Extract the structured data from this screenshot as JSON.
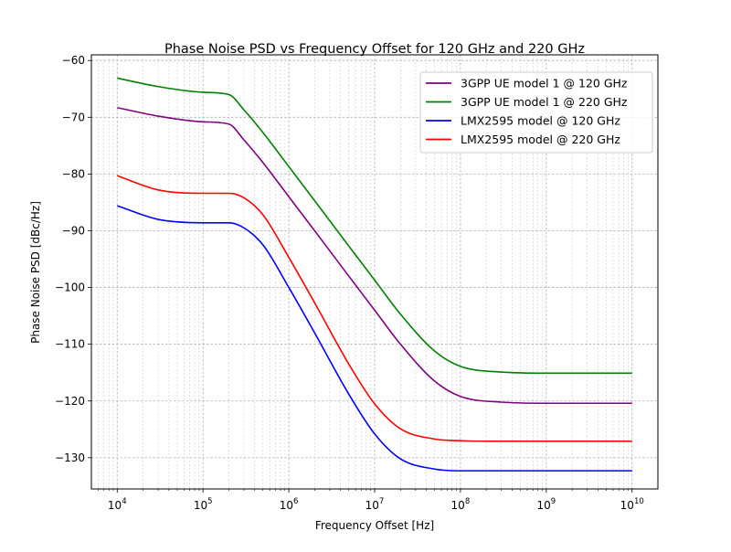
{
  "chart_data": {
    "type": "line",
    "title": "Phase Noise PSD vs Frequency Offset for 120 GHz and 220 GHz",
    "xlabel": "Frequency Offset [Hz]",
    "ylabel": "Phase Noise PSD [dBc/Hz]",
    "xscale": "log",
    "xlim": [
      5000,
      20000000000
    ],
    "ylim": [
      -135.5,
      -59
    ],
    "x_tick_exponents": [
      "4",
      "5",
      "6",
      "7",
      "8",
      "9",
      "10"
    ],
    "x_tick_base": "10",
    "y_ticks": [
      -60,
      -70,
      -80,
      -90,
      -100,
      -110,
      -120,
      -130
    ],
    "grid": true,
    "legend_position": "top-right",
    "x": [
      10000,
      30000,
      100000,
      200000,
      300000,
      500000,
      1000000,
      2000000,
      5000000,
      10000000,
      20000000,
      50000000,
      100000000,
      300000000,
      1000000000,
      10000000000
    ],
    "series": [
      {
        "name": "3GPP UE model 1 @ 120 GHz",
        "color": "#800080",
        "values": [
          -68.3,
          -69.8,
          -70.8,
          -71.2,
          -74.0,
          -78.0,
          -84.0,
          -90.0,
          -98.0,
          -104.0,
          -110.0,
          -116.5,
          -119.2,
          -120.2,
          -120.4,
          -120.4
        ]
      },
      {
        "name": "3GPP UE model 1 @ 220 GHz",
        "color": "#008000",
        "values": [
          -63.1,
          -64.6,
          -65.6,
          -66.0,
          -68.7,
          -72.7,
          -78.7,
          -84.7,
          -92.7,
          -98.7,
          -104.7,
          -111.2,
          -113.9,
          -114.9,
          -115.1,
          -115.1
        ]
      },
      {
        "name": "LMX2595 model @ 120 GHz",
        "color": "#0000ff",
        "values": [
          -85.6,
          -88.0,
          -88.6,
          -88.6,
          -89.5,
          -92.5,
          -100.0,
          -108.0,
          -118.8,
          -125.8,
          -130.2,
          -132.0,
          -132.3,
          -132.3,
          -132.3,
          -132.3
        ]
      },
      {
        "name": "LMX2595 model @ 220 GHz",
        "color": "#ff0000",
        "values": [
          -80.3,
          -82.8,
          -83.4,
          -83.4,
          -84.2,
          -87.2,
          -94.7,
          -102.7,
          -113.5,
          -120.5,
          -124.9,
          -126.7,
          -127.0,
          -127.1,
          -127.1,
          -127.1
        ]
      }
    ]
  }
}
